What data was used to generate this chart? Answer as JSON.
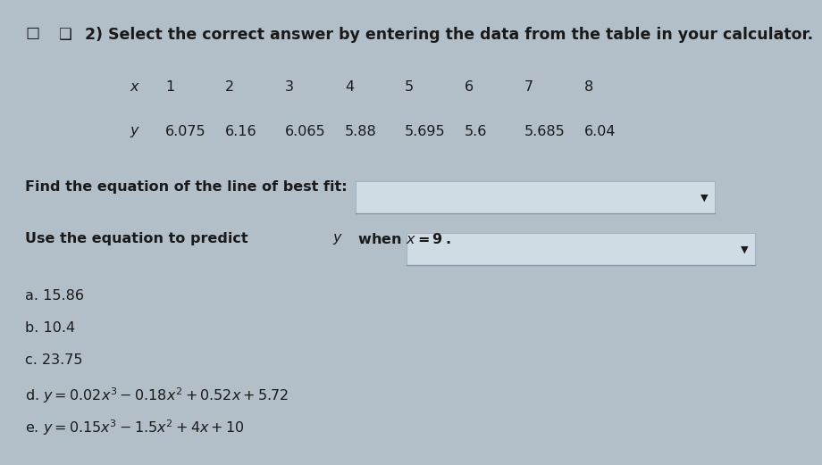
{
  "bg_color": "#b2bfc8",
  "text_color": "#1a1a1a",
  "dropdown_color": "#d0dce4",
  "dropdown_border": "#8fa8b8",
  "underline_color": "#7a9aaa",
  "title": "2) Select the correct answer by entering the data from the table in your calculator.",
  "x_label": "x",
  "y_label": "y",
  "x_values": [
    "1",
    "2",
    "3",
    "4",
    "5",
    "6",
    "7",
    "8"
  ],
  "y_values": [
    "6.075",
    "6.16",
    "6.065",
    "5.88",
    "5.695",
    "5.6",
    "5.685",
    "6.04"
  ],
  "find_eq": "Find the equation of the line of best fit:",
  "predict": "Use the equation to predict y when x = 9.",
  "choice_a": "a. 15.86",
  "choice_b": "b. 10.4",
  "choice_c": "c. 23.75",
  "choice_d": "d. y = 0.02x³ – 0.18x² + 0.52x + 5.72",
  "choice_e": "e. y = 0.15x³ – 1.5x² + 4x + 10",
  "font_size_title": 12.5,
  "font_size_body": 11.5,
  "font_size_table": 11.5
}
